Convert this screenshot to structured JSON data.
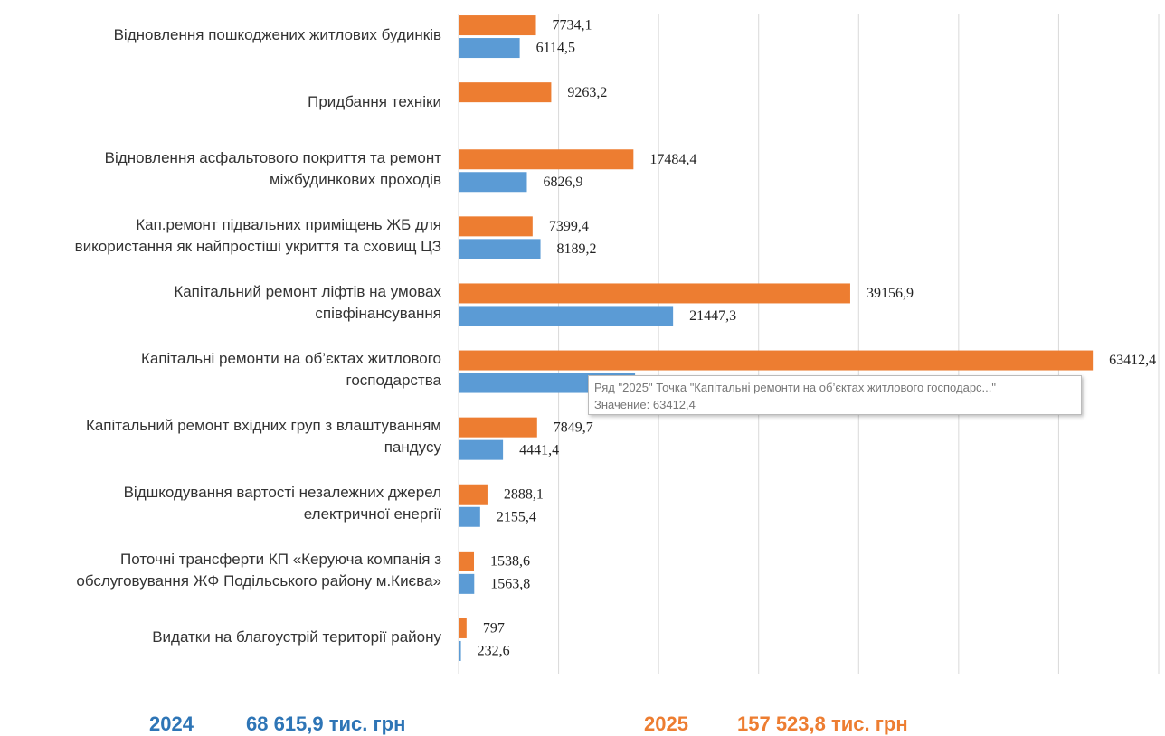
{
  "chart_data": {
    "type": "hbar",
    "categories": [
      "Відновлення пошкоджених житлових будинків",
      "Придбання техніки",
      "Відновлення асфальтового покриття та ремонт\nміжбудинкових проходів",
      "Кап.ремонт підвальних приміщень ЖБ для\nвикористання як найпростіші укриття та сховищ ЦЗ",
      "Капітальний ремонт ліфтів на умовах\nспівфінансування",
      "Капітальні ремонти на об’єктах житлового\nгосподарства",
      "Капітальний ремонт вхідних груп з влаштуванням\nпандусу",
      "Відшкодування вартості незалежних джерел\nелектричної енергії",
      "Поточні трансферти КП «Керуюча компанія з\nобслуговування ЖФ Подільського району м.Києва»",
      "Видатки на благоустрій території району"
    ],
    "series": [
      {
        "name": "2025",
        "color": "#ed7d31",
        "total": "157 523,8 тис. грн",
        "values": [
          7734.1,
          9263.2,
          17484.4,
          7399.4,
          39156.9,
          63412.4,
          7849.7,
          2888.1,
          1538.6,
          797
        ],
        "value_labels": [
          "7734,1",
          "9263,2",
          "17484,4",
          "7399,4",
          "39156,9",
          "63412,4",
          "7849,7",
          "2888,1",
          "1538,6",
          "797"
        ]
      },
      {
        "name": "2024",
        "color": "#5b9bd5",
        "total": "68 615,9 тис. грн",
        "values": [
          6114.5,
          null,
          6826.9,
          8189.2,
          21447.3,
          17644.8,
          4441.4,
          2155.4,
          1563.8,
          232.6
        ],
        "value_labels": [
          "6114,5",
          null,
          "6826,9",
          "8189,2",
          "21447,3",
          "17644,8",
          "4441,4",
          "2155,4",
          "1563,8",
          "232,6"
        ]
      }
    ],
    "xlim": [
      0,
      70000
    ],
    "xticks": [
      0,
      10000,
      20000,
      30000,
      40000,
      50000,
      60000,
      70000
    ],
    "grid": true,
    "tooltip": {
      "line1": "Ряд \"2025\" Точка \"Капітальні ремонти на об’єктах житлового господарс...\"",
      "line2": "Значение: 63412,4"
    }
  }
}
